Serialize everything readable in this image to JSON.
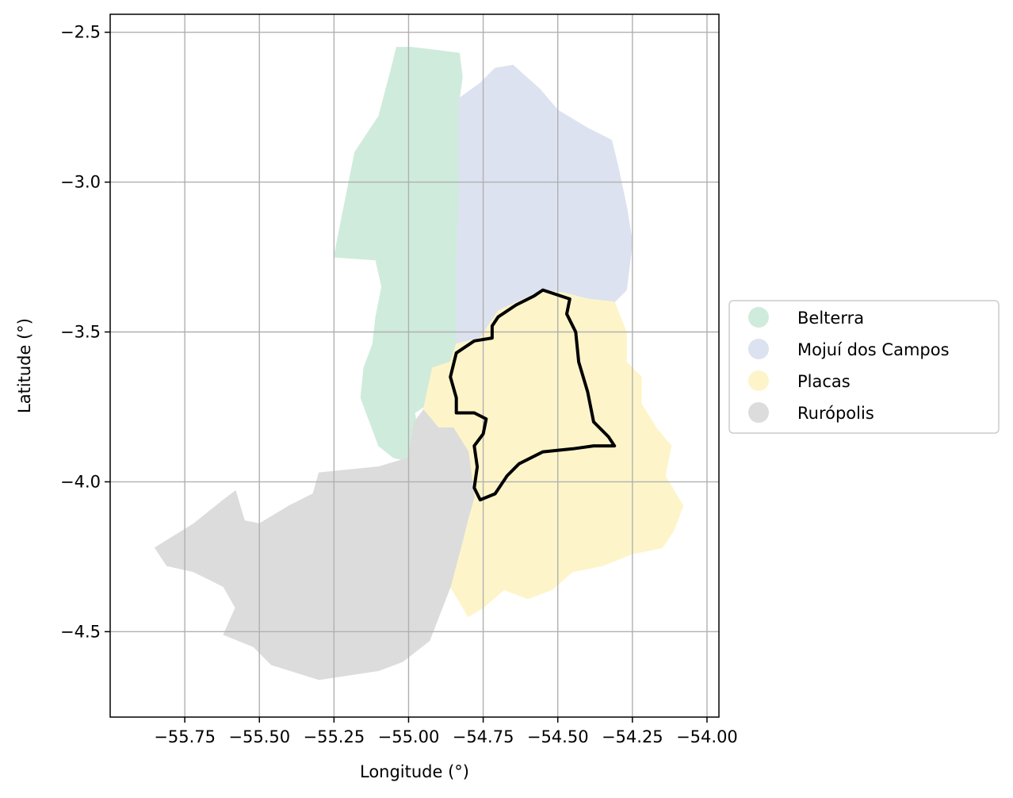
{
  "map": {
    "xlabel": "Longitude (°)",
    "ylabel": "Latitude (°)",
    "xlim": [
      -56.0,
      -53.96
    ],
    "ylim": [
      -4.785,
      -2.44
    ],
    "grid": true,
    "xticks": [
      -55.75,
      -55.5,
      -55.25,
      -55.0,
      -54.75,
      -54.5,
      -54.25,
      -54.0
    ],
    "xtick_labels": [
      "−55.75",
      "−55.50",
      "−55.25",
      "−55.00",
      "−54.75",
      "−54.50",
      "−54.25",
      "−54.00"
    ],
    "yticks": [
      -2.5,
      -3.0,
      -3.5,
      -4.0,
      -4.5
    ],
    "ytick_labels": [
      "−2.5",
      "−3.0",
      "−3.5",
      "−4.0",
      "−4.5"
    ],
    "legend_position": "outside right, centered",
    "regions": [
      {
        "name": "Belterra",
        "color": "#cfebdc",
        "polygon": [
          [
            -54.99,
            -2.55
          ],
          [
            -54.91,
            -2.56
          ],
          [
            -54.83,
            -2.57
          ],
          [
            -54.82,
            -2.65
          ],
          [
            -54.83,
            -2.72
          ],
          [
            -54.83,
            -3.0
          ],
          [
            -54.84,
            -3.3
          ],
          [
            -54.84,
            -3.54
          ],
          [
            -54.8,
            -3.55
          ],
          [
            -54.83,
            -3.58
          ],
          [
            -54.86,
            -3.6
          ],
          [
            -54.92,
            -3.62
          ],
          [
            -54.92,
            -3.7
          ],
          [
            -54.95,
            -3.75
          ],
          [
            -54.98,
            -3.77
          ],
          [
            -54.97,
            -3.82
          ],
          [
            -54.98,
            -3.87
          ],
          [
            -55.0,
            -3.93
          ],
          [
            -55.05,
            -3.92
          ],
          [
            -55.1,
            -3.88
          ],
          [
            -55.13,
            -3.8
          ],
          [
            -55.16,
            -3.72
          ],
          [
            -55.15,
            -3.62
          ],
          [
            -55.12,
            -3.54
          ],
          [
            -55.11,
            -3.45
          ],
          [
            -55.09,
            -3.35
          ],
          [
            -55.11,
            -3.26
          ],
          [
            -55.25,
            -3.25
          ],
          [
            -55.22,
            -3.1
          ],
          [
            -55.18,
            -2.9
          ],
          [
            -55.1,
            -2.78
          ],
          [
            -55.06,
            -2.63
          ],
          [
            -55.04,
            -2.55
          ]
        ]
      },
      {
        "name": "Mojuí dos Campos",
        "color": "#dde2f0",
        "polygon": [
          [
            -54.83,
            -2.72
          ],
          [
            -54.76,
            -2.67
          ],
          [
            -54.71,
            -2.62
          ],
          [
            -54.65,
            -2.61
          ],
          [
            -54.56,
            -2.69
          ],
          [
            -54.5,
            -2.76
          ],
          [
            -54.4,
            -2.82
          ],
          [
            -54.32,
            -2.86
          ],
          [
            -54.3,
            -2.94
          ],
          [
            -54.27,
            -3.08
          ],
          [
            -54.25,
            -3.2
          ],
          [
            -54.27,
            -3.36
          ],
          [
            -54.31,
            -3.4
          ],
          [
            -54.4,
            -3.39
          ],
          [
            -54.48,
            -3.37
          ],
          [
            -54.55,
            -3.36
          ],
          [
            -54.7,
            -3.43
          ],
          [
            -54.76,
            -3.52
          ],
          [
            -54.84,
            -3.54
          ],
          [
            -54.84,
            -3.3
          ],
          [
            -54.83,
            -3.0
          ]
        ]
      },
      {
        "name": "Placas",
        "color": "#fdf5c9",
        "polygon": [
          [
            -54.84,
            -3.54
          ],
          [
            -54.76,
            -3.52
          ],
          [
            -54.7,
            -3.43
          ],
          [
            -54.55,
            -3.36
          ],
          [
            -54.48,
            -3.37
          ],
          [
            -54.4,
            -3.39
          ],
          [
            -54.31,
            -3.4
          ],
          [
            -54.27,
            -3.5
          ],
          [
            -54.27,
            -3.6
          ],
          [
            -54.22,
            -3.65
          ],
          [
            -54.22,
            -3.74
          ],
          [
            -54.17,
            -3.82
          ],
          [
            -54.12,
            -3.88
          ],
          [
            -54.14,
            -3.98
          ],
          [
            -54.08,
            -4.08
          ],
          [
            -54.11,
            -4.16
          ],
          [
            -54.15,
            -4.22
          ],
          [
            -54.25,
            -4.24
          ],
          [
            -54.35,
            -4.28
          ],
          [
            -54.45,
            -4.3
          ],
          [
            -54.52,
            -4.36
          ],
          [
            -54.6,
            -4.39
          ],
          [
            -54.68,
            -4.36
          ],
          [
            -54.75,
            -4.42
          ],
          [
            -54.8,
            -4.45
          ],
          [
            -54.86,
            -4.35
          ],
          [
            -54.82,
            -4.2
          ],
          [
            -54.8,
            -4.12
          ],
          [
            -54.78,
            -4.05
          ],
          [
            -54.8,
            -3.9
          ],
          [
            -54.85,
            -3.82
          ],
          [
            -54.9,
            -3.82
          ],
          [
            -54.95,
            -3.76
          ],
          [
            -54.92,
            -3.62
          ],
          [
            -54.86,
            -3.6
          ]
        ]
      },
      {
        "name": "Rurópolis",
        "color": "#dcdcdc",
        "polygon": [
          [
            -54.95,
            -3.76
          ],
          [
            -54.98,
            -3.8
          ],
          [
            -55.0,
            -3.92
          ],
          [
            -55.1,
            -3.95
          ],
          [
            -55.2,
            -3.96
          ],
          [
            -55.3,
            -3.97
          ],
          [
            -55.32,
            -4.04
          ],
          [
            -55.4,
            -4.08
          ],
          [
            -55.5,
            -4.14
          ],
          [
            -55.55,
            -4.13
          ],
          [
            -55.58,
            -4.03
          ],
          [
            -55.62,
            -4.06
          ],
          [
            -55.72,
            -4.14
          ],
          [
            -55.85,
            -4.22
          ],
          [
            -55.81,
            -4.28
          ],
          [
            -55.72,
            -4.3
          ],
          [
            -55.62,
            -4.35
          ],
          [
            -55.58,
            -4.42
          ],
          [
            -55.62,
            -4.51
          ],
          [
            -55.52,
            -4.55
          ],
          [
            -55.46,
            -4.61
          ],
          [
            -55.3,
            -4.66
          ],
          [
            -55.1,
            -4.63
          ],
          [
            -55.02,
            -4.6
          ],
          [
            -54.93,
            -4.53
          ],
          [
            -54.86,
            -4.35
          ],
          [
            -54.82,
            -4.2
          ],
          [
            -54.8,
            -4.12
          ],
          [
            -54.78,
            -4.05
          ],
          [
            -54.8,
            -3.9
          ],
          [
            -54.85,
            -3.82
          ],
          [
            -54.9,
            -3.82
          ]
        ]
      }
    ],
    "highlight": {
      "color": "#000000",
      "polygon": [
        [
          -54.84,
          -3.57
        ],
        [
          -54.78,
          -3.53
        ],
        [
          -54.72,
          -3.52
        ],
        [
          -54.72,
          -3.48
        ],
        [
          -54.7,
          -3.45
        ],
        [
          -54.64,
          -3.41
        ],
        [
          -54.58,
          -3.38
        ],
        [
          -54.55,
          -3.36
        ],
        [
          -54.52,
          -3.37
        ],
        [
          -54.46,
          -3.39
        ],
        [
          -54.47,
          -3.44
        ],
        [
          -54.44,
          -3.5
        ],
        [
          -54.43,
          -3.6
        ],
        [
          -54.4,
          -3.7
        ],
        [
          -54.38,
          -3.8
        ],
        [
          -54.33,
          -3.85
        ],
        [
          -54.31,
          -3.88
        ],
        [
          -54.38,
          -3.88
        ],
        [
          -54.45,
          -3.89
        ],
        [
          -54.55,
          -3.9
        ],
        [
          -54.63,
          -3.94
        ],
        [
          -54.67,
          -3.98
        ],
        [
          -54.71,
          -4.04
        ],
        [
          -54.76,
          -4.06
        ],
        [
          -54.78,
          -4.02
        ],
        [
          -54.77,
          -3.95
        ],
        [
          -54.78,
          -3.88
        ],
        [
          -54.75,
          -3.84
        ],
        [
          -54.74,
          -3.79
        ],
        [
          -54.78,
          -3.77
        ],
        [
          -54.84,
          -3.77
        ],
        [
          -54.84,
          -3.72
        ],
        [
          -54.86,
          -3.65
        ]
      ]
    }
  },
  "legend": {
    "items": [
      {
        "label": "Belterra",
        "color": "#cfebdc"
      },
      {
        "label": "Mojuí dos Campos",
        "color": "#dde2f0"
      },
      {
        "label": "Placas",
        "color": "#fdf5c9"
      },
      {
        "label": "Rurópolis",
        "color": "#dcdcdc"
      }
    ]
  }
}
